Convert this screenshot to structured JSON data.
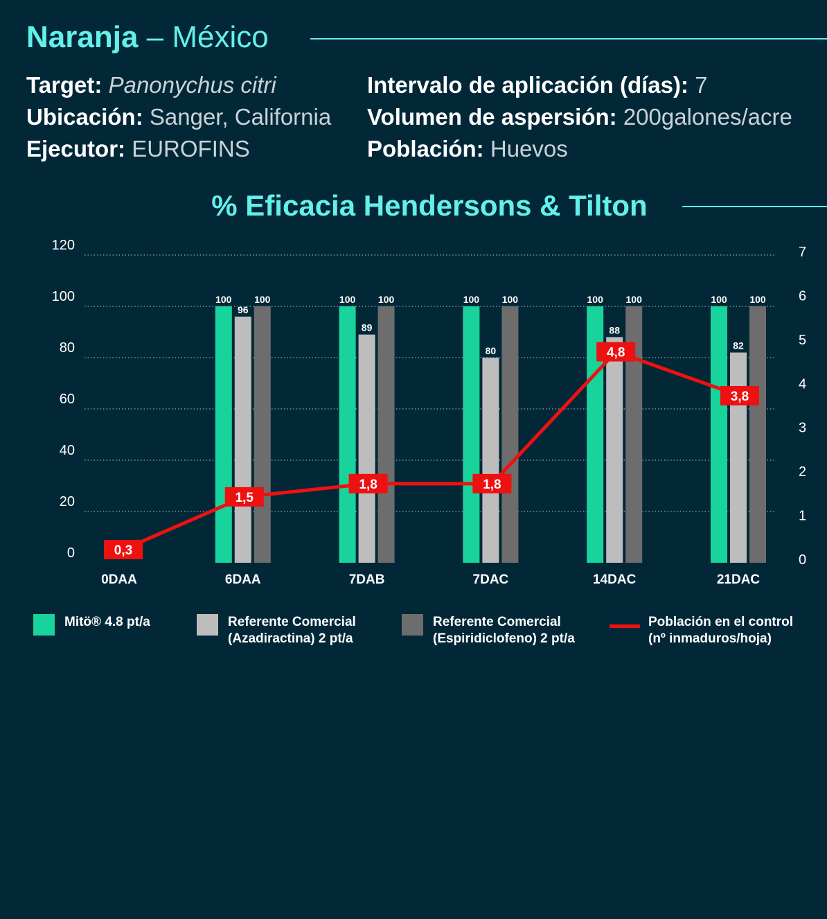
{
  "header": {
    "crop": "Naranja",
    "separator": "–",
    "country": "México"
  },
  "info": {
    "target_label": "Target:",
    "target_value": "Panonychus citri",
    "location_label": "Ubicación:",
    "location_value": "Sanger, California",
    "executor_label": "Ejecutor:",
    "executor_value": "EUROFINS",
    "interval_label": "Intervalo de aplicación (días):",
    "interval_value": "7",
    "volume_label": "Volumen de aspersión:",
    "volume_value": "200galones/acre",
    "population_label": "Población:",
    "population_value": "Huevos"
  },
  "colors": {
    "background": "#022838",
    "accent": "#63f0ea",
    "mito": "#18d49c",
    "azadiractina": "#bdbdbd",
    "espiridiclofeno": "#6d6d6d",
    "control_line": "#ee1111"
  },
  "chart_data": {
    "type": "bar",
    "title": "% Eficacia Hendersons & Tilton",
    "categories": [
      "0DAA",
      "6DAA",
      "7DAB",
      "7DAC",
      "14DAC",
      "21DAC"
    ],
    "ylim": [
      0,
      120
    ],
    "yticks": [
      "0",
      "20",
      "40",
      "60",
      "80",
      "100",
      "120"
    ],
    "y2lim": [
      0,
      7
    ],
    "y2ticks": [
      "0",
      "1",
      "2",
      "3",
      "4",
      "5",
      "6",
      "7"
    ],
    "grid": true,
    "legend_position": "bottom",
    "series": [
      {
        "name": "Mitö® 4.8 pt/a",
        "type": "bar",
        "color_key": "mito",
        "values": [
          null,
          100,
          100,
          100,
          100,
          100
        ],
        "labels": [
          "",
          "100",
          "100",
          "100",
          "100",
          "100"
        ]
      },
      {
        "name": "Referente Comercial (Azadiractina) 2 pt/a",
        "type": "bar",
        "color_key": "azadiractina",
        "values": [
          null,
          96,
          89,
          80,
          88,
          82
        ],
        "labels": [
          "",
          "96",
          "89",
          "80",
          "88",
          "82"
        ]
      },
      {
        "name": "Referente Comercial (Espiridiclofeno) 2 pt/a",
        "type": "bar",
        "color_key": "espiridiclofeno",
        "values": [
          null,
          100,
          100,
          100,
          100,
          100
        ],
        "labels": [
          "",
          "100",
          "100",
          "100",
          "100",
          "100"
        ]
      },
      {
        "name": "Población en el control (nº inmaduros/hoja)",
        "type": "line",
        "axis": "right",
        "color_key": "control_line",
        "values": [
          0.3,
          1.5,
          1.8,
          1.8,
          4.8,
          3.8
        ],
        "labels": [
          "0,3",
          "1,5",
          "1,8",
          "1,8",
          "4,8",
          "3,8"
        ]
      }
    ]
  },
  "legend": {
    "mito": [
      "Mitö® 4.8 pt/a"
    ],
    "azadiractina": [
      "Referente Comercial",
      "(Azadiractina) 2 pt/a"
    ],
    "espiridiclofeno": [
      "Referente Comercial",
      "(Espiridiclofeno) 2 pt/a"
    ],
    "control": [
      "Población en el control",
      "(nº inmaduros/hoja)"
    ]
  }
}
